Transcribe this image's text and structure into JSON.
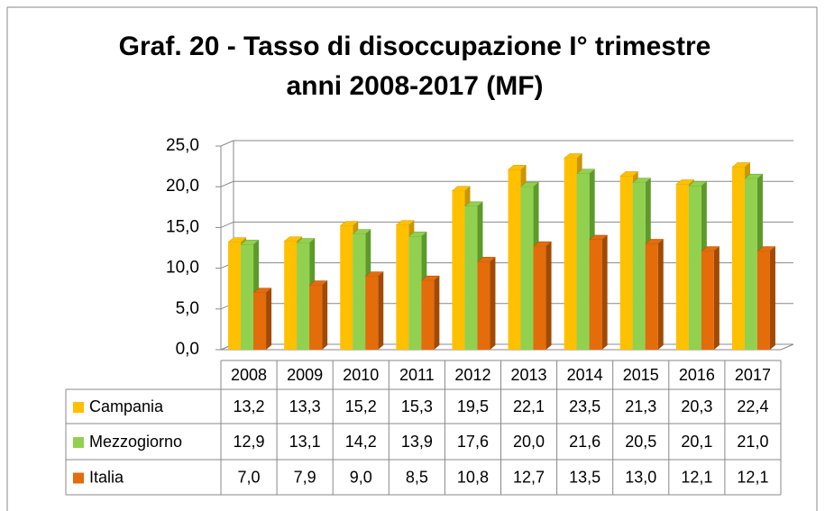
{
  "chart_data": {
    "type": "bar3d_table",
    "title": "Graf. 20 - Tasso di disoccupazione I° trimestre anni 2008-2017 (MF)",
    "categories": [
      "2008",
      "2009",
      "2010",
      "2011",
      "2012",
      "2013",
      "2014",
      "2015",
      "2016",
      "2017"
    ],
    "series": [
      {
        "name": "Campania",
        "color": "#ffc000",
        "side": "#c89600",
        "values": [
          13.2,
          13.3,
          15.2,
          15.3,
          19.5,
          22.1,
          23.5,
          21.3,
          20.3,
          22.4
        ],
        "value_labels": [
          "13,2",
          "13,3",
          "15,2",
          "15,3",
          "19,5",
          "22,1",
          "23,5",
          "21,3",
          "20,3",
          "22,4"
        ]
      },
      {
        "name": "Mezzogiorno",
        "color": "#92d050",
        "side": "#5e9a2a",
        "values": [
          12.9,
          13.1,
          14.2,
          13.9,
          17.6,
          20.0,
          21.6,
          20.5,
          20.1,
          21.0
        ],
        "value_labels": [
          "12,9",
          "13,1",
          "14,2",
          "13,9",
          "17,6",
          "20,0",
          "21,6",
          "20,5",
          "20,1",
          "21,0"
        ]
      },
      {
        "name": "Italia",
        "color": "#e46c0a",
        "side": "#a14a05",
        "values": [
          7.0,
          7.9,
          9.0,
          8.5,
          10.8,
          12.7,
          13.5,
          13.0,
          12.1,
          12.1
        ],
        "value_labels": [
          "7,0",
          "7,9",
          "9,0",
          "8,5",
          "10,8",
          "12,7",
          "13,5",
          "13,0",
          "12,1",
          "12,1"
        ]
      }
    ],
    "ylim": [
      0,
      25
    ],
    "yticks": [
      {
        "value": 0,
        "label": "0,0"
      },
      {
        "value": 5,
        "label": "5,0"
      },
      {
        "value": 10,
        "label": "10,0"
      },
      {
        "value": 15,
        "label": "15,0"
      },
      {
        "value": 20,
        "label": "20,0"
      },
      {
        "value": 25,
        "label": "25,0"
      }
    ],
    "grid": true
  }
}
